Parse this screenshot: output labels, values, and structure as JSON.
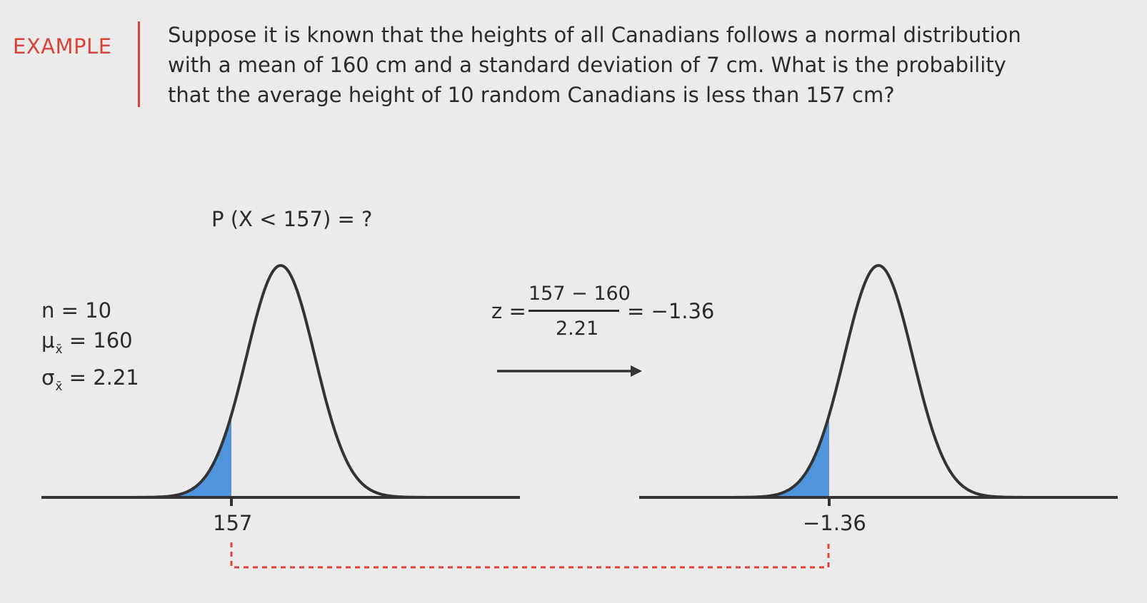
{
  "header": {
    "label": "EXAMPLE",
    "problem_lines": [
      "Suppose it is known that the heights of all Canadians follows a normal distribution",
      "with a mean of 160 cm and a standard deviation of 7 cm. What is the probability",
      "that the average height of 10 random Canadians is less than 157 cm?"
    ]
  },
  "diagram": {
    "probability_question": "P (X < 157) = ?",
    "params": {
      "n": "n = 10",
      "mu_symbol": "μ",
      "mu_sub": "x̄",
      "mu_value": "= 160",
      "sigma_symbol": "σ",
      "sigma_sub": "x̄",
      "sigma_value": "= 2.21"
    },
    "z_formula": {
      "lhs": "z =",
      "numerator": "157 − 160",
      "denominator": "2.21",
      "result": "= −1.36"
    },
    "left_tick_label": "157",
    "right_tick_label": "−1.36",
    "curve_color": "#333333",
    "shade_color": "#4f94dc",
    "accent_color": "#d9433b"
  }
}
